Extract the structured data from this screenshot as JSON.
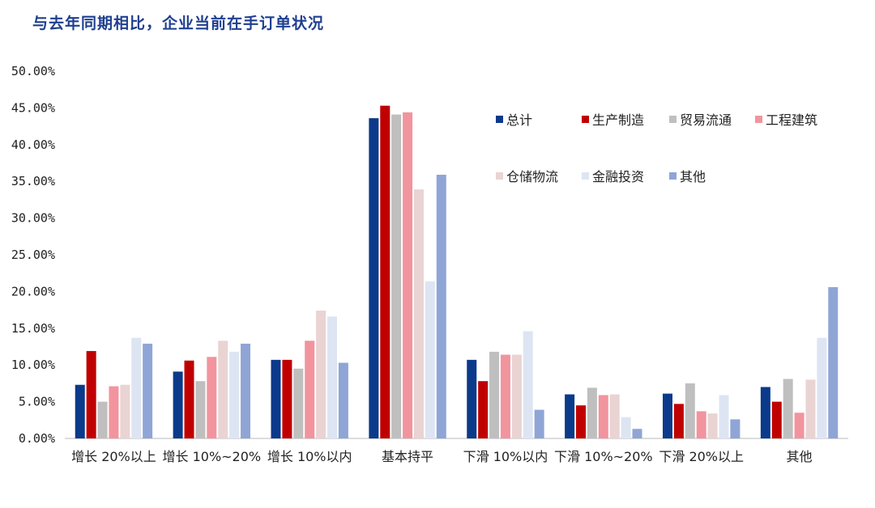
{
  "chart_data": {
    "type": "bar",
    "title": "与去年同期相比，企业当前在手订单状况",
    "xlabel": "",
    "ylabel": "",
    "ylim": [
      0,
      0.5
    ],
    "yticks": [
      "0.00%",
      "5.00%",
      "10.00%",
      "15.00%",
      "20.00%",
      "25.00%",
      "30.00%",
      "35.00%",
      "40.00%",
      "45.00%",
      "50.00%"
    ],
    "grid": false,
    "legend_position": "top-right",
    "categories": [
      "增长 20%以上",
      "增长 10%~20%",
      "增长 10%以内",
      "基本持平",
      "下滑 10%以内",
      "下滑 10%~20%",
      "下滑 20%以上",
      "其他"
    ],
    "series": [
      {
        "name": "总计",
        "color": "#0b3a8a",
        "values": [
          0.073,
          0.091,
          0.107,
          0.436,
          0.107,
          0.06,
          0.061,
          0.07
        ]
      },
      {
        "name": "生产制造",
        "color": "#c00000",
        "values": [
          0.119,
          0.106,
          0.107,
          0.453,
          0.078,
          0.045,
          0.047,
          0.05
        ]
      },
      {
        "name": "贸易流通",
        "color": "#bfbfbf",
        "values": [
          0.05,
          0.078,
          0.095,
          0.441,
          0.118,
          0.069,
          0.075,
          0.081
        ]
      },
      {
        "name": "工程建筑",
        "color": "#f2949e",
        "values": [
          0.071,
          0.111,
          0.133,
          0.444,
          0.114,
          0.059,
          0.037,
          0.035
        ]
      },
      {
        "name": "仓储物流",
        "color": "#ead3d3",
        "values": [
          0.073,
          0.133,
          0.174,
          0.339,
          0.114,
          0.06,
          0.034,
          0.08
        ]
      },
      {
        "name": "金融投资",
        "color": "#dde5f3",
        "values": [
          0.137,
          0.118,
          0.166,
          0.214,
          0.146,
          0.029,
          0.059,
          0.137
        ]
      },
      {
        "name": "其他",
        "color": "#8fa5d6",
        "values": [
          0.129,
          0.129,
          0.103,
          0.359,
          0.039,
          0.013,
          0.026,
          0.206
        ]
      }
    ]
  }
}
